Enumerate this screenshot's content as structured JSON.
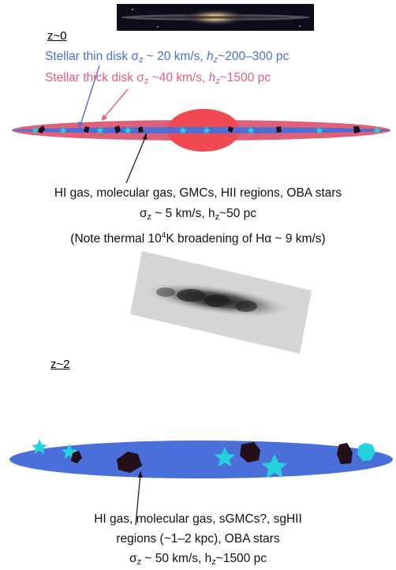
{
  "colors": {
    "thin_disk": "#4a6fd8",
    "thick_disk": "#e0607a",
    "bulge": "#ef4a52",
    "stars_cyan": "#22d3dd",
    "clumps": "#230f18",
    "text": "#111111"
  },
  "z0": {
    "heading": "z~0",
    "thin_label": {
      "prefix": "Stellar thin disk σ",
      "sub": "z",
      "mid": " ~ 20 km/s, ",
      "ital": "h",
      "ital_sub": "z",
      "suffix": "~200–300 pc"
    },
    "thick_label": {
      "prefix": "Stellar thick disk σ",
      "sub": "z",
      "mid": " ~40 km/s, ",
      "ital": "h",
      "ital_sub": "z",
      "suffix": "~1500 pc"
    },
    "gas_line1": "HI gas, molecular gas, GMCs, HII regions, OBA stars",
    "gas_line2": {
      "prefix": "σ",
      "sub": "z",
      "mid": " ~ 5 km/s, h",
      "sub2": "z",
      "suffix": "~50 pc"
    },
    "gas_line3": {
      "prefix": "(Note thermal 10",
      "sup": "4",
      "suffix": "K broadening of Hα ~ 9 km/s)"
    }
  },
  "z2": {
    "heading": "z~2",
    "gas_line1": "HI gas, molecular gas, sGMCs?, sgHII",
    "gas_line2": "regions (~1–2 kpc), OBA stars",
    "gas_line3": {
      "prefix": "σ",
      "sub": "z",
      "mid": " ~ 50 km/s, h",
      "sub2": "z",
      "suffix": "~1500 pc"
    }
  }
}
